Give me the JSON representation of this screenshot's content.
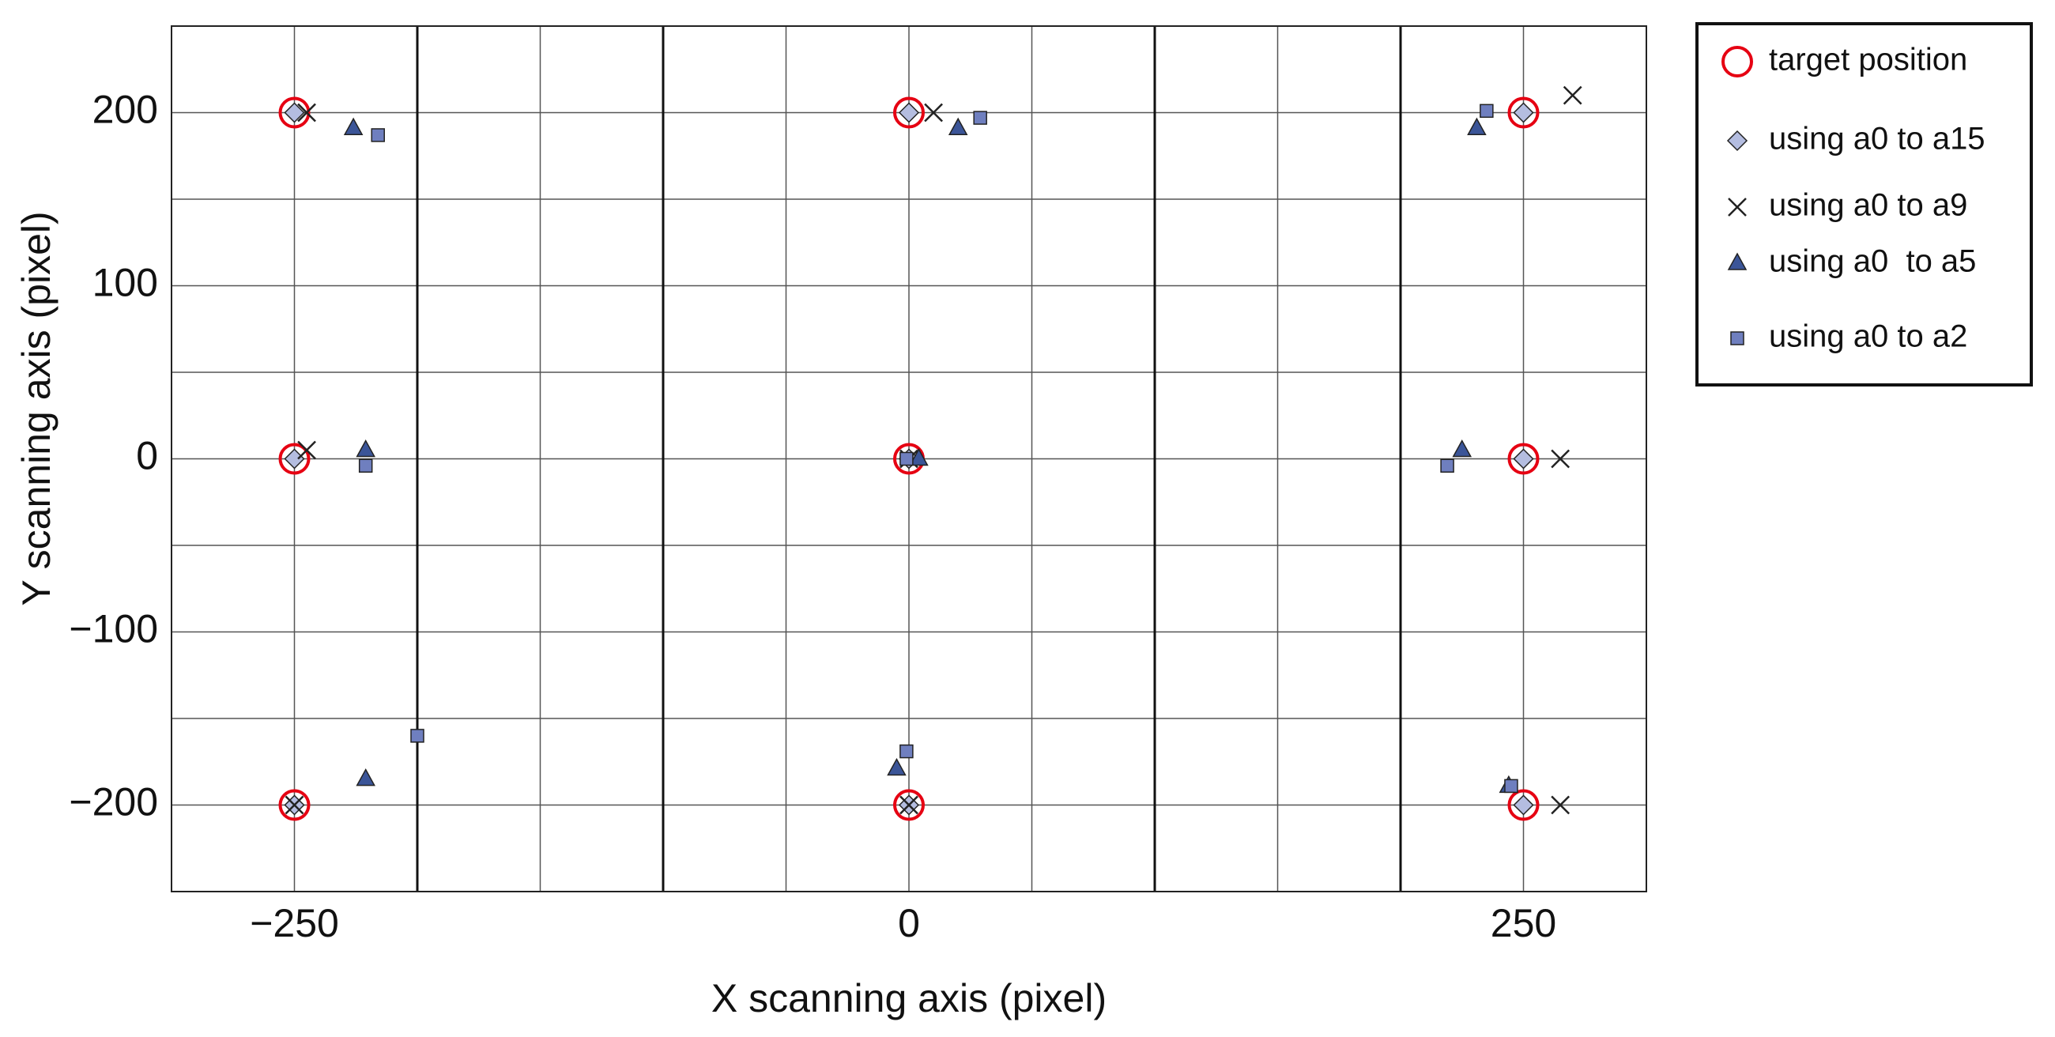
{
  "chart_data": {
    "type": "scatter",
    "x_label": "X scanning axis (pixel)",
    "y_label": "Y scanning axis (pixel)",
    "xlim": [
      -300,
      300
    ],
    "ylim": [
      -250,
      250
    ],
    "xticks": [
      {
        "value": -250,
        "label": "−250"
      },
      0,
      250
    ],
    "yticks": [
      {
        "value": -200,
        "label": "−200"
      },
      {
        "value": -100,
        "label": "−100"
      },
      0,
      100,
      200
    ],
    "xgrid": [
      -250,
      -150,
      -50,
      0,
      50,
      150,
      250
    ],
    "xgrid_major": [
      -200,
      -100,
      100,
      200
    ],
    "ygrid": [
      -200,
      -150,
      -100,
      -50,
      0,
      50,
      100,
      150,
      200
    ],
    "legend": "outside-right",
    "series": [
      {
        "name": "target position",
        "marker": "circle",
        "color": "#e60012",
        "x": [
          -250,
          0,
          250,
          -250,
          0,
          250,
          -250,
          0,
          250
        ],
        "values": [
          200,
          200,
          200,
          0,
          0,
          0,
          -200,
          -200,
          -200
        ]
      },
      {
        "name": "using a0 to a15",
        "marker": "diamond",
        "color": "#b4bde0",
        "x": [
          -250,
          0,
          250,
          -250,
          0,
          250,
          -250,
          0,
          250
        ],
        "values": [
          200,
          200,
          200,
          0,
          0,
          0,
          -200,
          -200,
          -200
        ]
      },
      {
        "name": "using a0 to a9",
        "marker": "cross",
        "color": "#222222",
        "x": [
          -245,
          10,
          270,
          -245,
          0,
          265,
          -250,
          0,
          265
        ],
        "values": [
          200,
          200,
          210,
          5,
          0,
          0,
          -200,
          -200,
          -200
        ]
      },
      {
        "name": "using a0  to a5",
        "marker": "triangle",
        "color": "#3b5598",
        "x": [
          -226,
          20,
          231,
          -221,
          4,
          225,
          -221,
          -5,
          244
        ],
        "values": [
          191,
          191,
          191,
          5,
          0,
          5,
          -185,
          -179,
          -189
        ]
      },
      {
        "name": "using a0 to a2",
        "marker": "square",
        "color": "#6f7fbf",
        "x": [
          -216,
          29,
          235,
          -221,
          -1,
          219,
          -200,
          -1,
          245
        ],
        "values": [
          187,
          197,
          201,
          -4,
          0,
          -4,
          -160,
          -169,
          -189
        ]
      }
    ]
  }
}
